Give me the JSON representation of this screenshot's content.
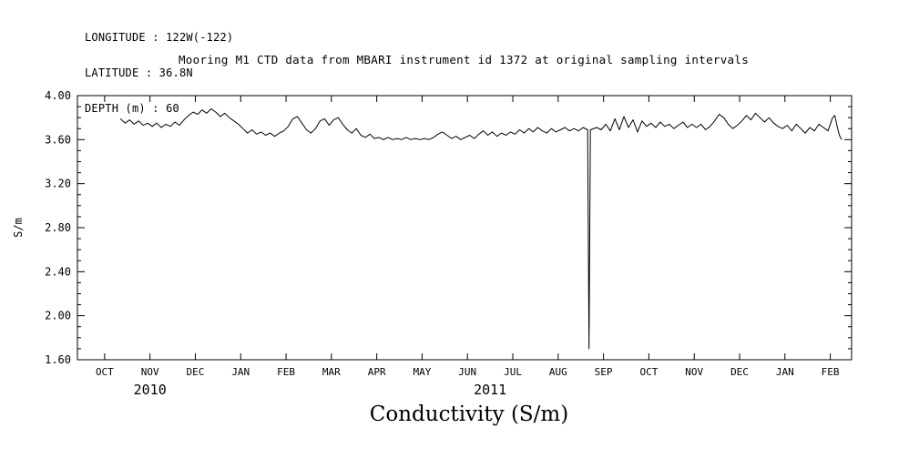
{
  "header": {
    "longitude": "LONGITUDE : 122W(-122)",
    "latitude": "LATITUDE : 36.8N",
    "depth": "DEPTH (m) : 60"
  },
  "title": "Mooring M1 CTD data from MBARI instrument id 1372 at original sampling intervals",
  "caption": "Conductivity (S/m)",
  "chart_data": {
    "type": "line",
    "title": "Mooring M1 CTD data from MBARI instrument id 1372 at original sampling intervals",
    "xlabel": "Conductivity (S/m)",
    "ylabel": "S/m",
    "ylim": [
      1.6,
      4.0
    ],
    "y_major_ticks": [
      1.6,
      2.0,
      2.4,
      2.8,
      3.2,
      3.6,
      4.0
    ],
    "y_minor_step": 0.1,
    "x_unit": "months since OCT 2010",
    "xlim": [
      -0.6,
      16.47
    ],
    "x_ticks": [
      {
        "pos": 0,
        "label": "OCT"
      },
      {
        "pos": 1,
        "label": "NOV"
      },
      {
        "pos": 2,
        "label": "DEC"
      },
      {
        "pos": 3,
        "label": "JAN"
      },
      {
        "pos": 4,
        "label": "FEB"
      },
      {
        "pos": 5,
        "label": "MAR"
      },
      {
        "pos": 6,
        "label": "APR"
      },
      {
        "pos": 7,
        "label": "MAY"
      },
      {
        "pos": 8,
        "label": "JUN"
      },
      {
        "pos": 9,
        "label": "JUL"
      },
      {
        "pos": 10,
        "label": "AUG"
      },
      {
        "pos": 11,
        "label": "SEP"
      },
      {
        "pos": 12,
        "label": "OCT"
      },
      {
        "pos": 13,
        "label": "NOV"
      },
      {
        "pos": 14,
        "label": "DEC"
      },
      {
        "pos": 15,
        "label": "JAN"
      },
      {
        "pos": 16,
        "label": "FEB"
      }
    ],
    "year_labels": [
      {
        "pos": 1,
        "label": "2010"
      },
      {
        "pos": 8.5,
        "label": "2011"
      }
    ],
    "grid": false,
    "legend": null,
    "line_color": "#000000",
    "series": [
      {
        "name": "conductivity",
        "points": [
          [
            0.35,
            3.79
          ],
          [
            0.45,
            3.75
          ],
          [
            0.55,
            3.78
          ],
          [
            0.65,
            3.74
          ],
          [
            0.75,
            3.77
          ],
          [
            0.85,
            3.73
          ],
          [
            0.95,
            3.75
          ],
          [
            1.05,
            3.72
          ],
          [
            1.15,
            3.75
          ],
          [
            1.25,
            3.71
          ],
          [
            1.35,
            3.74
          ],
          [
            1.45,
            3.72
          ],
          [
            1.55,
            3.76
          ],
          [
            1.65,
            3.73
          ],
          [
            1.75,
            3.78
          ],
          [
            1.85,
            3.82
          ],
          [
            1.95,
            3.85
          ],
          [
            2.05,
            3.83
          ],
          [
            2.15,
            3.87
          ],
          [
            2.25,
            3.84
          ],
          [
            2.35,
            3.88
          ],
          [
            2.45,
            3.85
          ],
          [
            2.55,
            3.81
          ],
          [
            2.65,
            3.84
          ],
          [
            2.75,
            3.8
          ],
          [
            2.85,
            3.77
          ],
          [
            2.95,
            3.74
          ],
          [
            3.05,
            3.7
          ],
          [
            3.15,
            3.66
          ],
          [
            3.25,
            3.69
          ],
          [
            3.35,
            3.65
          ],
          [
            3.45,
            3.67
          ],
          [
            3.55,
            3.64
          ],
          [
            3.65,
            3.66
          ],
          [
            3.75,
            3.63
          ],
          [
            3.85,
            3.66
          ],
          [
            3.95,
            3.68
          ],
          [
            4.05,
            3.72
          ],
          [
            4.15,
            3.79
          ],
          [
            4.25,
            3.81
          ],
          [
            4.35,
            3.75
          ],
          [
            4.45,
            3.69
          ],
          [
            4.55,
            3.66
          ],
          [
            4.65,
            3.7
          ],
          [
            4.75,
            3.77
          ],
          [
            4.85,
            3.79
          ],
          [
            4.95,
            3.73
          ],
          [
            5.05,
            3.78
          ],
          [
            5.15,
            3.8
          ],
          [
            5.25,
            3.74
          ],
          [
            5.35,
            3.69
          ],
          [
            5.45,
            3.66
          ],
          [
            5.55,
            3.7
          ],
          [
            5.65,
            3.64
          ],
          [
            5.75,
            3.62
          ],
          [
            5.85,
            3.65
          ],
          [
            5.95,
            3.61
          ],
          [
            6.05,
            3.62
          ],
          [
            6.15,
            3.6
          ],
          [
            6.25,
            3.62
          ],
          [
            6.35,
            3.6
          ],
          [
            6.45,
            3.61
          ],
          [
            6.55,
            3.6
          ],
          [
            6.65,
            3.62
          ],
          [
            6.75,
            3.6
          ],
          [
            6.85,
            3.61
          ],
          [
            6.95,
            3.6
          ],
          [
            7.05,
            3.61
          ],
          [
            7.15,
            3.6
          ],
          [
            7.25,
            3.62
          ],
          [
            7.35,
            3.65
          ],
          [
            7.45,
            3.67
          ],
          [
            7.55,
            3.64
          ],
          [
            7.65,
            3.61
          ],
          [
            7.75,
            3.63
          ],
          [
            7.85,
            3.6
          ],
          [
            7.95,
            3.62
          ],
          [
            8.05,
            3.64
          ],
          [
            8.15,
            3.61
          ],
          [
            8.25,
            3.65
          ],
          [
            8.35,
            3.68
          ],
          [
            8.45,
            3.64
          ],
          [
            8.55,
            3.67
          ],
          [
            8.65,
            3.63
          ],
          [
            8.75,
            3.66
          ],
          [
            8.85,
            3.64
          ],
          [
            8.95,
            3.67
          ],
          [
            9.05,
            3.65
          ],
          [
            9.15,
            3.69
          ],
          [
            9.25,
            3.66
          ],
          [
            9.35,
            3.7
          ],
          [
            9.45,
            3.67
          ],
          [
            9.55,
            3.71
          ],
          [
            9.65,
            3.68
          ],
          [
            9.75,
            3.66
          ],
          [
            9.85,
            3.7
          ],
          [
            9.95,
            3.67
          ],
          [
            10.05,
            3.69
          ],
          [
            10.15,
            3.71
          ],
          [
            10.25,
            3.68
          ],
          [
            10.35,
            3.7
          ],
          [
            10.45,
            3.68
          ],
          [
            10.55,
            3.71
          ],
          [
            10.65,
            3.69
          ],
          [
            10.68,
            1.7
          ],
          [
            10.71,
            3.69
          ],
          [
            10.85,
            3.71
          ],
          [
            10.95,
            3.69
          ],
          [
            11.05,
            3.74
          ],
          [
            11.15,
            3.68
          ],
          [
            11.25,
            3.79
          ],
          [
            11.35,
            3.69
          ],
          [
            11.45,
            3.81
          ],
          [
            11.55,
            3.71
          ],
          [
            11.65,
            3.78
          ],
          [
            11.75,
            3.67
          ],
          [
            11.85,
            3.77
          ],
          [
            11.95,
            3.72
          ],
          [
            12.05,
            3.75
          ],
          [
            12.15,
            3.71
          ],
          [
            12.25,
            3.76
          ],
          [
            12.35,
            3.72
          ],
          [
            12.45,
            3.74
          ],
          [
            12.55,
            3.7
          ],
          [
            12.65,
            3.73
          ],
          [
            12.75,
            3.76
          ],
          [
            12.85,
            3.71
          ],
          [
            12.95,
            3.74
          ],
          [
            13.05,
            3.71
          ],
          [
            13.15,
            3.74
          ],
          [
            13.25,
            3.69
          ],
          [
            13.35,
            3.72
          ],
          [
            13.45,
            3.77
          ],
          [
            13.55,
            3.83
          ],
          [
            13.65,
            3.8
          ],
          [
            13.75,
            3.74
          ],
          [
            13.85,
            3.7
          ],
          [
            13.95,
            3.73
          ],
          [
            14.05,
            3.77
          ],
          [
            14.15,
            3.82
          ],
          [
            14.25,
            3.78
          ],
          [
            14.35,
            3.84
          ],
          [
            14.45,
            3.8
          ],
          [
            14.55,
            3.76
          ],
          [
            14.65,
            3.8
          ],
          [
            14.75,
            3.75
          ],
          [
            14.85,
            3.72
          ],
          [
            14.95,
            3.7
          ],
          [
            15.05,
            3.73
          ],
          [
            15.15,
            3.68
          ],
          [
            15.25,
            3.74
          ],
          [
            15.35,
            3.7
          ],
          [
            15.45,
            3.66
          ],
          [
            15.55,
            3.71
          ],
          [
            15.65,
            3.68
          ],
          [
            15.75,
            3.74
          ],
          [
            15.85,
            3.71
          ],
          [
            15.95,
            3.68
          ],
          [
            16.05,
            3.8
          ],
          [
            16.1,
            3.82
          ],
          [
            16.15,
            3.72
          ],
          [
            16.2,
            3.64
          ],
          [
            16.25,
            3.6
          ]
        ]
      }
    ]
  }
}
